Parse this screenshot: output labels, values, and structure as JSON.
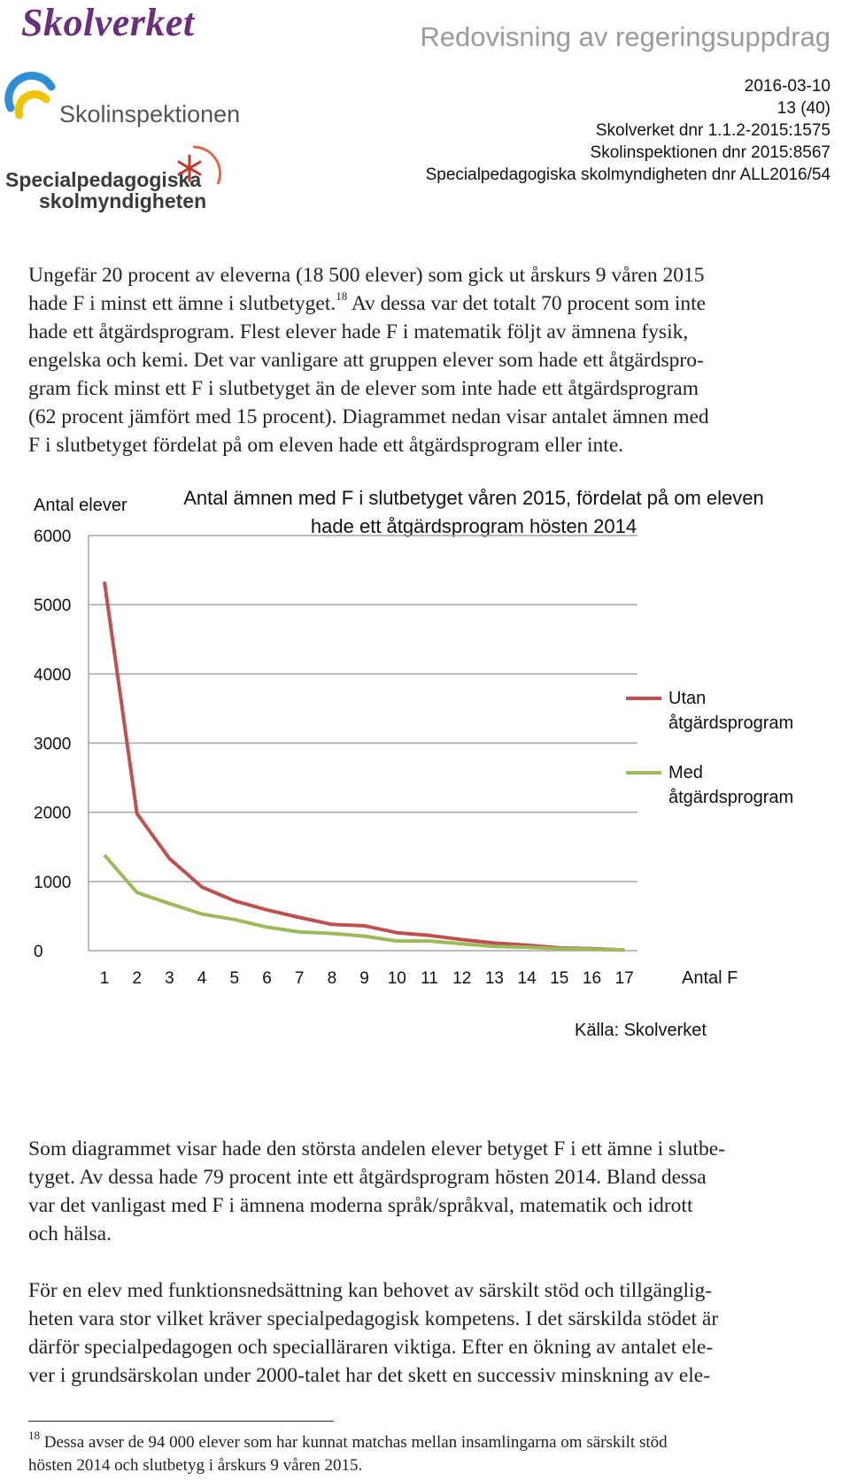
{
  "header": {
    "logo_skolverket": "Skolverket",
    "logo_skolinspektionen": "Skolinspektionen",
    "logo_spsm_line1": "Specialpedagogiska",
    "logo_spsm_line2": "skolmyndigheten",
    "title": "Redovisning av regeringsuppdrag",
    "date": "2016-03-10",
    "page": "13 (40)",
    "dnr_skolverket": "Skolverket dnr 1.1.2-2015:1575",
    "dnr_skolinspektionen": "Skolinspektionen dnr 2015:8567",
    "dnr_spsm": "Specialpedagogiska skolmyndigheten dnr ALL2016/54",
    "colors": {
      "skolverket_purple": "#6b2d7e",
      "si_blue": "#2f8fd6",
      "si_yellow": "#f2c300",
      "spsm_orange": "#e2674a"
    }
  },
  "paragraph1": {
    "line1": "Ungefär 20 procent av eleverna (18 500 elever) som gick ut årskurs 9 våren 2015",
    "line2a": "hade F i minst ett ämne i slutbetyget.",
    "line2_sup": "18",
    "line2b": " Av dessa var det totalt 70 procent som inte",
    "line3": "hade ett åtgärdsprogram. Flest elever hade F i matematik följt av ämnena fysik,",
    "line4": "engelska och kemi. Det var vanligare att gruppen elever som hade ett åtgärdspro-",
    "line5": "gram fick minst ett F i slutbetyget än de elever som inte hade ett åtgärdsprogram",
    "line6": "(62 procent jämfört med 15 procent). Diagrammet nedan visar antalet ämnen med",
    "line7": "F i slutbetyget fördelat på om eleven hade ett åtgärdsprogram eller inte."
  },
  "chart_data": {
    "type": "line",
    "title_line1": "Antal ämnen med F i slutbetyget våren 2015, fördelat på om eleven",
    "title_line2": "hade ett åtgärdsprogram hösten 2014",
    "ylabel": "Antal elever",
    "xlabel": "Antal F",
    "source": "Källa: Skolverket",
    "ylim": [
      0,
      6000
    ],
    "yticks": [
      0,
      1000,
      2000,
      3000,
      4000,
      5000,
      6000
    ],
    "ytick_labels": [
      "0",
      "1000",
      "2000",
      "3000",
      "4000",
      "5000",
      "6000"
    ],
    "x": [
      1,
      2,
      3,
      4,
      5,
      6,
      7,
      8,
      9,
      10,
      11,
      12,
      13,
      14,
      15,
      16,
      17
    ],
    "x_labels": [
      "1",
      "2",
      "3",
      "4",
      "5",
      "6",
      "7",
      "8",
      "9",
      "10",
      "11",
      "12",
      "13",
      "14",
      "15",
      "16",
      "17"
    ],
    "grid": true,
    "legend_position": "right",
    "series": [
      {
        "name_line1": "Utan",
        "name_line2": "åtgärdsprogram",
        "color": "#c0504d",
        "values": [
          5330,
          1980,
          1330,
          920,
          720,
          590,
          480,
          380,
          360,
          260,
          220,
          160,
          110,
          80,
          40,
          30,
          10
        ]
      },
      {
        "name_line1": "Med",
        "name_line2": "åtgärdsprogram",
        "color": "#9bbb59",
        "values": [
          1380,
          840,
          680,
          530,
          450,
          340,
          270,
          250,
          210,
          140,
          140,
          100,
          60,
          50,
          30,
          20,
          10
        ]
      }
    ]
  },
  "paragraph2": {
    "line1": "Som diagrammet visar hade den största andelen elever betyget F i ett ämne i slutbe-",
    "line2": "tyget. Av dessa hade 79 procent inte ett åtgärdsprogram hösten 2014. Bland dessa",
    "line3": "var det vanligast med F i ämnena moderna språk/språkval, matematik och idrott",
    "line4": "och hälsa."
  },
  "paragraph3": {
    "line1": "För en elev med funktionsnedsättning kan behovet av särskilt stöd och tillgänglig-",
    "line2": "heten vara stor vilket kräver specialpedagogisk kompetens. I det särskilda stödet är",
    "line3": "därför specialpedagogen och specialläraren viktiga. Efter en ökning av antalet ele-",
    "line4": "ver i grundsärskolan under 2000-talet har det skett en successiv minskning av ele-"
  },
  "footnote": {
    "number": "18",
    "line1": " Dessa avser de 94 000 elever som har kunnat matchas mellan insamlingarna om särskilt stöd",
    "line2": "hösten 2014 och slutbetyg i årskurs 9 våren 2015."
  }
}
